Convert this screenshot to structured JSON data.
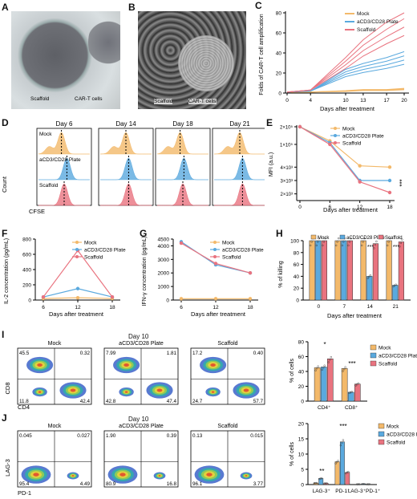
{
  "panels": {
    "A": {
      "letter": "A",
      "scaffold": "Scaffold",
      "cart": "CAR-T cells"
    },
    "B": {
      "letter": "B",
      "scaffold": "Scaffold",
      "cart": "CAR-T cells"
    },
    "C": {
      "letter": "C",
      "ylabel": "Folds of CAR-T cell amplification",
      "xlabel": "Days after treatment",
      "xticks": [
        "0",
        "4",
        "10",
        "13",
        "17",
        "20"
      ],
      "yticks": [
        "0",
        "20",
        "40",
        "60",
        "80"
      ],
      "legend": [
        "Mock",
        "aCD3/CD28 Plate",
        "Scaffold"
      ]
    },
    "D": {
      "letter": "D",
      "days": [
        "Day 6",
        "Day 14",
        "Day 18",
        "Day 21"
      ],
      "rows": [
        "Mock",
        "aCD3/CD28 Plate",
        "Scaffold"
      ],
      "ylabel": "Count",
      "xlabel": "CFSE"
    },
    "E": {
      "letter": "E",
      "ylabel": "MFI (a.u.)",
      "xlabel": "Days after treatment",
      "xticks": [
        "0",
        "6",
        "12",
        "18"
      ],
      "yticks": [
        "2×10⁵",
        "1×10⁵",
        "4×10³",
        "3×10³",
        "2×10³"
      ],
      "legend": [
        "Mock",
        "aCD3/CD28 Plate",
        "Scaffold"
      ],
      "sig": "***"
    },
    "F": {
      "letter": "F",
      "ylabel": "IL-2 concentration (pg/mL)",
      "xlabel": "Days after treatment",
      "xticks": [
        "6",
        "12",
        "18"
      ],
      "yticks": [
        "0",
        "200",
        "400",
        "600",
        "800"
      ],
      "legend": [
        "Mock",
        "aCD3/CD28 Plate",
        "Scaffold"
      ]
    },
    "G": {
      "letter": "G",
      "ylabel": "IFN-γ concentration (pg/mL)",
      "xlabel": "Days after treatment",
      "xticks": [
        "6",
        "12",
        "18"
      ],
      "yticks": [
        "0",
        "1000",
        "2000",
        "3000",
        "4000",
        "4500"
      ],
      "legend": [
        "Mock",
        "aCD3/CD28 Plate",
        "Scaffold"
      ]
    },
    "H": {
      "letter": "H",
      "ylabel": "% of killing",
      "xlabel": "Days after treatment",
      "xticks": [
        "0",
        "7",
        "14",
        "21"
      ],
      "yticks": [
        "0",
        "20",
        "40",
        "60",
        "80",
        "100"
      ],
      "legend": [
        "Mock",
        "aCD3/CD28 Plate",
        "Scaffold"
      ],
      "sig": [
        "***",
        "***"
      ]
    },
    "I": {
      "letter": "I",
      "title": "Day 10",
      "plots": [
        {
          "name": "Mock",
          "q": [
            "45.5",
            "0.32",
            "11.8",
            "42.4"
          ]
        },
        {
          "name": "aCD3/CD28 Plate",
          "q": [
            "7.99",
            "1.81",
            "42.8",
            "47.4"
          ]
        },
        {
          "name": "Scaffold",
          "q": [
            "17.2",
            "0.40",
            "24.7",
            "57.7"
          ]
        }
      ],
      "ylabel": "CD8",
      "xlabel": "CD4",
      "bar": {
        "ylabel": "% of cells",
        "yticks": [
          "0",
          "20",
          "40",
          "60",
          "80"
        ],
        "groups": [
          "CD4⁺",
          "CD8⁺"
        ],
        "legend": [
          "Mock",
          "aCD3/CD28 Plate",
          "Scaffold"
        ],
        "sig": [
          "*",
          "***"
        ]
      }
    },
    "J": {
      "letter": "J",
      "title": "Day 10",
      "plots": [
        {
          "name": "Mock",
          "q": [
            "0.045",
            "0.027",
            "95.4",
            "4.49"
          ]
        },
        {
          "name": "aCD3/CD28 Plate",
          "q": [
            "1.90",
            "0.39",
            "80.9",
            "16.8"
          ]
        },
        {
          "name": "Scaffold",
          "q": [
            "0.13",
            "0.015",
            "96.1",
            "3.77"
          ]
        }
      ],
      "ylabel": "LAG-3",
      "xlabel": "PD-1",
      "bar": {
        "ylabel": "% of cells",
        "yticks": [
          "0",
          "5",
          "10",
          "15",
          "20"
        ],
        "groups": [
          "LAG-3⁺",
          "PD-1⁺",
          "LAG-3⁺PD-1⁺"
        ],
        "legend": [
          "Mock",
          "aCD3/CD28 Plate",
          "Scaffold"
        ],
        "sig": [
          "**",
          "***"
        ]
      }
    }
  },
  "colors": {
    "mock": "#F3B96A",
    "plate": "#5AA9DE",
    "scaffold": "#E9737F"
  },
  "chart_data": [
    {
      "type": "line",
      "panel": "C",
      "x": [
        0,
        4,
        10,
        13,
        17,
        20
      ],
      "ylim": [
        0,
        80
      ],
      "series": [
        {
          "name": "Mock",
          "values": [
            1,
            1,
            2,
            3,
            3,
            4
          ]
        },
        {
          "name": "aCD3/CD28 Plate",
          "values": [
            1,
            2,
            20,
            25,
            30,
            35
          ]
        },
        {
          "name": "Scaffold",
          "values": [
            1,
            3,
            30,
            45,
            60,
            70
          ]
        }
      ]
    },
    {
      "type": "line",
      "panel": "E",
      "x": [
        0,
        6,
        12,
        18
      ],
      "series": [
        {
          "name": "Mock",
          "values": [
            200000,
            120000,
            4100,
            4000
          ]
        },
        {
          "name": "aCD3/CD28 Plate",
          "values": [
            200000,
            110000,
            3000,
            3000
          ]
        },
        {
          "name": "Scaffold",
          "values": [
            200000,
            100000,
            2900,
            2100
          ]
        }
      ]
    },
    {
      "type": "line",
      "panel": "F",
      "x": [
        6,
        12,
        18
      ],
      "ylim": [
        0,
        800
      ],
      "series": [
        {
          "name": "Mock",
          "values": [
            20,
            30,
            20
          ]
        },
        {
          "name": "aCD3/CD28 Plate",
          "values": [
            40,
            150,
            40
          ]
        },
        {
          "name": "Scaffold",
          "values": [
            40,
            650,
            40
          ]
        }
      ]
    },
    {
      "type": "line",
      "panel": "G",
      "x": [
        6,
        12,
        18
      ],
      "ylim": [
        0,
        4500
      ],
      "series": [
        {
          "name": "Mock",
          "values": [
            100,
            100,
            100
          ]
        },
        {
          "name": "aCD3/CD28 Plate",
          "values": [
            4300,
            2600,
            2000
          ]
        },
        {
          "name": "Scaffold",
          "values": [
            4200,
            2700,
            2000
          ]
        }
      ]
    },
    {
      "type": "bar",
      "panel": "H",
      "categories": [
        "0",
        "7",
        "14",
        "21"
      ],
      "ylim": [
        0,
        100
      ],
      "series": [
        {
          "name": "Mock",
          "values": [
            100,
            100,
            100,
            100
          ]
        },
        {
          "name": "aCD3/CD28 Plate",
          "values": [
            100,
            100,
            40,
            25
          ]
        },
        {
          "name": "Scaffold",
          "values": [
            100,
            100,
            95,
            98
          ]
        }
      ]
    },
    {
      "type": "bar",
      "panel": "I",
      "categories": [
        "CD4⁺",
        "CD8⁺"
      ],
      "ylim": [
        0,
        80
      ],
      "series": [
        {
          "name": "Mock",
          "values": [
            45,
            44
          ]
        },
        {
          "name": "aCD3/CD28 Plate",
          "values": [
            46,
            12
          ]
        },
        {
          "name": "Scaffold",
          "values": [
            57,
            23
          ]
        }
      ]
    },
    {
      "type": "bar",
      "panel": "J",
      "categories": [
        "LAG-3⁺",
        "PD-1⁺",
        "LAG-3⁺PD-1⁺"
      ],
      "ylim": [
        0,
        20
      ],
      "series": [
        {
          "name": "Mock",
          "values": [
            0.5,
            7.5,
            0.1
          ]
        },
        {
          "name": "aCD3/CD28 Plate",
          "values": [
            2,
            14,
            0.2
          ]
        },
        {
          "name": "Scaffold",
          "values": [
            0.4,
            4,
            0.1
          ]
        }
      ]
    }
  ]
}
